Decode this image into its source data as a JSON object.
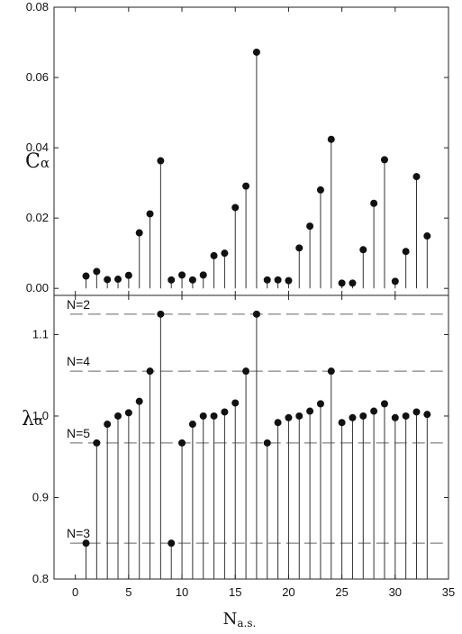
{
  "chart_data": [
    {
      "type": "stem",
      "panel": "top",
      "ylabel_main": "C",
      "ylabel_sub": "α",
      "xlim": [
        -2,
        35
      ],
      "ylim": [
        -0.002,
        0.08
      ],
      "yticks": [
        "0.00",
        "0.02",
        "0.04",
        "0.06",
        "0.08"
      ],
      "ytick_values": [
        0,
        0.02,
        0.04,
        0.06,
        0.08
      ],
      "x": [
        1,
        2,
        3,
        4,
        5,
        6,
        7,
        8,
        9,
        10,
        11,
        12,
        13,
        14,
        15,
        16,
        17,
        18,
        19,
        20,
        21,
        22,
        23,
        24,
        25,
        26,
        27,
        28,
        29,
        30,
        31,
        32,
        33
      ],
      "values": [
        0.0035,
        0.0048,
        0.0025,
        0.0026,
        0.0037,
        0.0158,
        0.0212,
        0.0363,
        0.0024,
        0.0038,
        0.0024,
        0.0038,
        0.0093,
        0.01,
        0.023,
        0.0291,
        0.0672,
        0.0024,
        0.0024,
        0.0022,
        0.0115,
        0.0177,
        0.028,
        0.0424,
        0.0015,
        0.0015,
        0.011,
        0.0242,
        0.0366,
        0.002,
        0.0105,
        0.0318,
        0.0149
      ]
    },
    {
      "type": "stem",
      "panel": "bottom",
      "ylabel_main": "λ",
      "ylabel_sub": "α",
      "xlabel_main": "N",
      "xlabel_sub": "a.s.",
      "xlim": [
        -2,
        35
      ],
      "ylim": [
        0.8,
        1.148
      ],
      "yticks": [
        "0.8",
        "0.9",
        "1.0",
        "1.1"
      ],
      "ytick_values": [
        0.8,
        0.9,
        1.0,
        1.1
      ],
      "xticks": [
        "0",
        "5",
        "10",
        "15",
        "20",
        "25",
        "30",
        "35"
      ],
      "xtick_values": [
        0,
        5,
        10,
        15,
        20,
        25,
        30,
        35
      ],
      "x": [
        1,
        2,
        3,
        4,
        5,
        6,
        7,
        8,
        9,
        10,
        11,
        12,
        13,
        14,
        15,
        16,
        17,
        18,
        19,
        20,
        21,
        22,
        23,
        24,
        25,
        26,
        27,
        28,
        29,
        30,
        31,
        32,
        33
      ],
      "values": [
        0.844,
        0.967,
        0.99,
        1.0,
        1.004,
        1.018,
        1.055,
        1.125,
        0.844,
        0.967,
        0.99,
        1.0,
        1.0,
        1.005,
        1.016,
        1.055,
        1.125,
        0.967,
        0.992,
        0.998,
        1.0,
        1.006,
        1.015,
        1.055,
        0.992,
        0.998,
        1.0,
        1.006,
        1.015,
        0.998,
        1.0,
        1.005,
        1.002
      ],
      "reference_lines": [
        {
          "label": "N=2",
          "y": 1.125
        },
        {
          "label": "N=4",
          "y": 1.055
        },
        {
          "label": "N=5",
          "y": 0.967
        },
        {
          "label": "N=3",
          "y": 0.844
        }
      ]
    }
  ]
}
